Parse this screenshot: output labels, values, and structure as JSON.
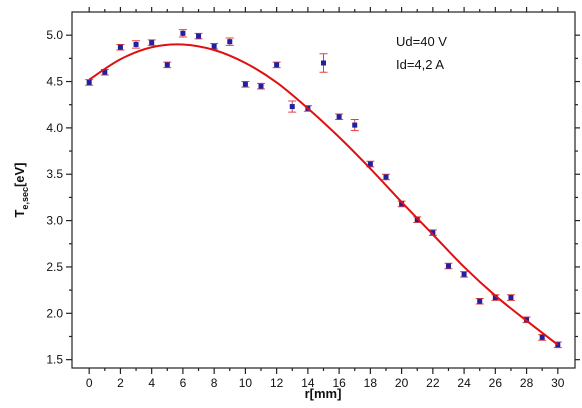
{
  "chart_data": {
    "type": "scatter",
    "xlabel": "r[mm]",
    "ylabel": {
      "main": "T",
      "sub": "e,sec",
      "unit": "[eV]"
    },
    "annotations": [
      "Ud=40 V",
      "Id=4,2 A"
    ],
    "xlim": [
      -1.1,
      31.1
    ],
    "ylim": [
      1.41,
      5.25
    ],
    "xticks": [
      0,
      2,
      4,
      6,
      8,
      10,
      12,
      14,
      16,
      18,
      20,
      22,
      24,
      26,
      28,
      30
    ],
    "xminorticks": [
      1,
      3,
      5,
      7,
      9,
      11,
      13,
      15,
      17,
      19,
      21,
      23,
      25,
      27,
      29
    ],
    "yticks": [
      1.5,
      {
        "value": 2,
        "label": "2.0"
      },
      2.5,
      {
        "value": 3,
        "label": "3.0"
      },
      3.5,
      {
        "value": 4,
        "label": "4.0"
      },
      4.5,
      {
        "value": 5,
        "label": "5.0"
      }
    ],
    "yminorticks": [
      1.75,
      2.25,
      2.75,
      3.25,
      3.75,
      4.25,
      4.75
    ],
    "series": [
      {
        "type": "scatter",
        "color": "#2020a0",
        "error_color": "#e04040",
        "x": [
          0,
          1,
          2,
          3,
          4,
          5,
          6,
          7,
          8,
          9,
          10,
          11,
          12,
          13,
          14,
          15,
          16,
          17,
          18,
          19,
          20,
          21,
          22,
          23,
          24,
          25,
          26,
          27,
          28,
          29,
          30
        ],
        "values": [
          4.49,
          4.6,
          4.87,
          4.9,
          4.92,
          4.68,
          5.02,
          4.99,
          4.88,
          4.93,
          4.47,
          4.45,
          4.68,
          4.23,
          4.21,
          4.7,
          4.12,
          4.03,
          3.61,
          3.47,
          3.18,
          3.01,
          2.87,
          2.51,
          2.42,
          2.13,
          2.17,
          2.17,
          1.93,
          1.74,
          1.66
        ],
        "errors": [
          0.03,
          0.03,
          0.03,
          0.04,
          0.03,
          0.03,
          0.04,
          0.03,
          0.03,
          0.04,
          0.03,
          0.03,
          0.03,
          0.06,
          0.03,
          0.1,
          0.03,
          0.06,
          0.03,
          0.03,
          0.03,
          0.03,
          0.03,
          0.03,
          0.03,
          0.03,
          0.03,
          0.03,
          0.03,
          0.03,
          0.03
        ]
      },
      {
        "type": "line",
        "color": "#e01010",
        "x": [
          0,
          2,
          4,
          6,
          8,
          10,
          12,
          14,
          16,
          18,
          20,
          22,
          24,
          26,
          28,
          30
        ],
        "values": [
          4.52,
          4.74,
          4.87,
          4.9,
          4.84,
          4.7,
          4.49,
          4.21,
          3.9,
          3.56,
          3.2,
          2.85,
          2.5,
          2.19,
          1.92,
          1.66
        ]
      }
    ]
  }
}
